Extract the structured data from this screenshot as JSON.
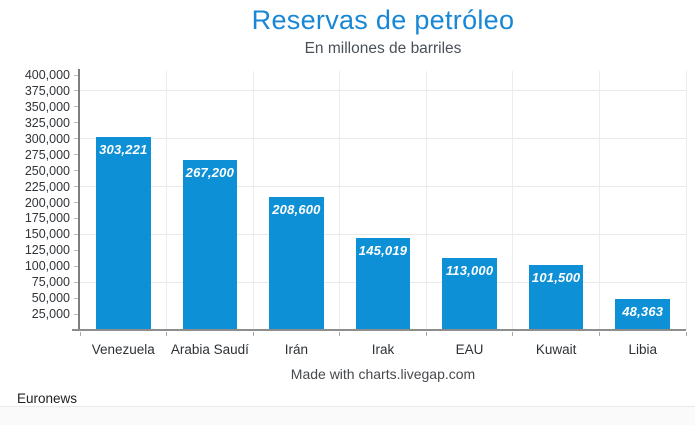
{
  "footer": {
    "source": "Euronews"
  },
  "chart_data": {
    "type": "bar",
    "title": "Reservas de petróleo",
    "subtitle": "En millones de barriles",
    "credit": "Made with charts.livegap.com",
    "categories": [
      "Venezuela",
      "Arabia Saudí",
      "Irán",
      "Irak",
      "EAU",
      "Kuwait",
      "Libia"
    ],
    "values": [
      303221,
      267200,
      208600,
      145019,
      113000,
      101500,
      48363
    ],
    "value_labels": [
      "303,221",
      "267,200",
      "208,600",
      "145,019",
      "113,000",
      "101,500",
      "48,363"
    ],
    "xlabel": "",
    "ylabel": "",
    "ylim": [
      0,
      400000
    ],
    "grid": true,
    "legend": false,
    "gridlines": [
      375000,
      300000,
      225000,
      150000,
      75000
    ],
    "y_ticks": [
      {
        "value": 400000,
        "label": "400,000"
      },
      {
        "value": 375000,
        "label": "375,000"
      },
      {
        "value": 350000,
        "label": "350,000"
      },
      {
        "value": 325000,
        "label": "325,000"
      },
      {
        "value": 300000,
        "label": "300,000"
      },
      {
        "value": 275000,
        "label": "275,000"
      },
      {
        "value": 250000,
        "label": "250,000"
      },
      {
        "value": 225000,
        "label": "225,000"
      },
      {
        "value": 200000,
        "label": "200,000"
      },
      {
        "value": 175000,
        "label": "175,000"
      },
      {
        "value": 150000,
        "label": "150,000"
      },
      {
        "value": 125000,
        "label": "125,000"
      },
      {
        "value": 100000,
        "label": "100,000"
      },
      {
        "value": 75000,
        "label": "75,000"
      },
      {
        "value": 50000,
        "label": "50,000"
      },
      {
        "value": 25000,
        "label": "25,000"
      }
    ],
    "colors": {
      "bar": "#0e90d6",
      "title": "#1787d6",
      "gridline": "#e9e9e9",
      "axis": "#8d8d8d",
      "tick_text": "#2f343a"
    }
  }
}
